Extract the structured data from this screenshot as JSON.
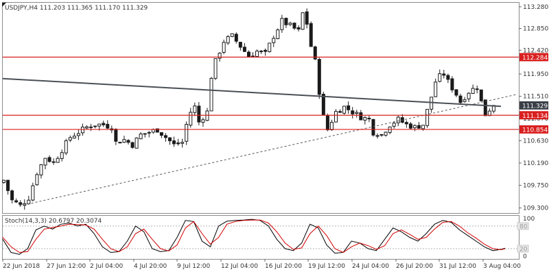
{
  "chart_data": [
    {
      "type": "candlestick",
      "title": "USDJPY,H4  111.203 111.365 111.170 111.329",
      "symbol": "USDJPY",
      "timeframe": "H4",
      "ohlc": {
        "open": 111.203,
        "high": 111.365,
        "low": 111.17,
        "close": 111.329
      },
      "ylim": [
        109.2,
        113.36
      ],
      "price_ticks": [
        "113.280",
        "112.850",
        "112.420",
        "111.950",
        "111.510",
        "111.070",
        "110.630",
        "110.190",
        "109.750",
        "109.300"
      ],
      "x_ticks": [
        "22 Jun 2018",
        "27 Jun 12:00",
        "2 Jul 04:00",
        "4 Jul 20:00",
        "9 Jul 12:00",
        "12 Jul 04:00",
        "16 Jul 20:00",
        "19 Jul 12:00",
        "24 Jul 04:00",
        "26 Jul 20:00",
        "31 Jul 12:00",
        "3 Aug 04:00"
      ],
      "horizontal_levels": [
        {
          "value": 112.284,
          "label": "112.284",
          "color": "#d91f1f"
        },
        {
          "value": 111.134,
          "label": "111.134",
          "color": "#d91f1f"
        },
        {
          "value": 110.854,
          "label": "110.854",
          "color": "#d91f1f"
        }
      ],
      "current_price": {
        "value": 111.329,
        "label": "111.329",
        "color": "#3a3f47"
      },
      "trendlines": [
        {
          "style": "solid",
          "color": "#4a4f55",
          "from": {
            "bar": 0,
            "price": 111.86
          },
          "to": {
            "bar": 120,
            "price": 111.31
          }
        },
        {
          "style": "dashed",
          "color": "#555555",
          "from": {
            "bar": 4,
            "price": 109.34
          },
          "to": {
            "bar": 124,
            "price": 111.55
          }
        }
      ],
      "series": [
        {
          "close_path": [
            {
              "bar": 0,
              "price": 109.85
            },
            {
              "bar": 2,
              "price": 109.45
            },
            {
              "bar": 4,
              "price": 109.35
            },
            {
              "bar": 6,
              "price": 109.5
            },
            {
              "bar": 8,
              "price": 110.0
            },
            {
              "bar": 10,
              "price": 110.3
            },
            {
              "bar": 12,
              "price": 110.2
            },
            {
              "bar": 14,
              "price": 110.45
            },
            {
              "bar": 16,
              "price": 110.7
            },
            {
              "bar": 18,
              "price": 110.8
            },
            {
              "bar": 20,
              "price": 110.9
            },
            {
              "bar": 22,
              "price": 110.95
            },
            {
              "bar": 24,
              "price": 110.95
            },
            {
              "bar": 26,
              "price": 110.9
            },
            {
              "bar": 27,
              "price": 110.6
            },
            {
              "bar": 29,
              "price": 110.65
            },
            {
              "bar": 31,
              "price": 110.55
            },
            {
              "bar": 33,
              "price": 110.75
            },
            {
              "bar": 35,
              "price": 110.8
            },
            {
              "bar": 37,
              "price": 110.85
            },
            {
              "bar": 39,
              "price": 110.7
            },
            {
              "bar": 41,
              "price": 110.55
            },
            {
              "bar": 43,
              "price": 110.6
            },
            {
              "bar": 44,
              "price": 110.95
            },
            {
              "bar": 45,
              "price": 111.2
            },
            {
              "bar": 46,
              "price": 111.3
            },
            {
              "bar": 47,
              "price": 111.0
            },
            {
              "bar": 49,
              "price": 111.2
            },
            {
              "bar": 50,
              "price": 111.9
            },
            {
              "bar": 51,
              "price": 112.2
            },
            {
              "bar": 53,
              "price": 112.6
            },
            {
              "bar": 55,
              "price": 112.7
            },
            {
              "bar": 57,
              "price": 112.5
            },
            {
              "bar": 59,
              "price": 112.3
            },
            {
              "bar": 61,
              "price": 112.4
            },
            {
              "bar": 63,
              "price": 112.35
            },
            {
              "bar": 65,
              "price": 112.7
            },
            {
              "bar": 67,
              "price": 113.0
            },
            {
              "bar": 69,
              "price": 112.9
            },
            {
              "bar": 71,
              "price": 112.8
            },
            {
              "bar": 72,
              "price": 113.15
            },
            {
              "bar": 73,
              "price": 112.95
            },
            {
              "bar": 74,
              "price": 112.5
            },
            {
              "bar": 75,
              "price": 112.2
            },
            {
              "bar": 76,
              "price": 111.6
            },
            {
              "bar": 77,
              "price": 111.1
            },
            {
              "bar": 78,
              "price": 110.85
            },
            {
              "bar": 80,
              "price": 111.2
            },
            {
              "bar": 82,
              "price": 111.3
            },
            {
              "bar": 84,
              "price": 111.2
            },
            {
              "bar": 86,
              "price": 111.1
            },
            {
              "bar": 88,
              "price": 111.05
            },
            {
              "bar": 89,
              "price": 110.8
            },
            {
              "bar": 91,
              "price": 110.75
            },
            {
              "bar": 93,
              "price": 110.95
            },
            {
              "bar": 95,
              "price": 111.05
            },
            {
              "bar": 97,
              "price": 110.95
            },
            {
              "bar": 99,
              "price": 110.9
            },
            {
              "bar": 101,
              "price": 110.95
            },
            {
              "bar": 103,
              "price": 111.5
            },
            {
              "bar": 104,
              "price": 111.8
            },
            {
              "bar": 105,
              "price": 111.9
            },
            {
              "bar": 106,
              "price": 111.95
            },
            {
              "bar": 107,
              "price": 111.8
            },
            {
              "bar": 109,
              "price": 111.55
            },
            {
              "bar": 110,
              "price": 111.4
            },
            {
              "bar": 112,
              "price": 111.6
            },
            {
              "bar": 114,
              "price": 111.7
            },
            {
              "bar": 115,
              "price": 111.4
            },
            {
              "bar": 116,
              "price": 111.15
            },
            {
              "bar": 117,
              "price": 111.25
            },
            {
              "bar": 118,
              "price": 111.33
            }
          ]
        }
      ]
    },
    {
      "type": "line",
      "title": "Stoch(14,3,3) 20.6797 20.3074",
      "ylim": [
        0,
        100
      ],
      "y_ticks": [
        "100",
        "0"
      ],
      "levels": [
        {
          "value": 80,
          "label": "80"
        },
        {
          "value": 20,
          "label": "20"
        }
      ],
      "series": [
        {
          "name": "%K",
          "color": "#000000",
          "points": [
            {
              "bar": 0,
              "value": 45
            },
            {
              "bar": 2,
              "value": 10
            },
            {
              "bar": 4,
              "value": 5
            },
            {
              "bar": 6,
              "value": 20
            },
            {
              "bar": 8,
              "value": 70
            },
            {
              "bar": 10,
              "value": 80
            },
            {
              "bar": 12,
              "value": 72
            },
            {
              "bar": 14,
              "value": 85
            },
            {
              "bar": 16,
              "value": 88
            },
            {
              "bar": 18,
              "value": 80
            },
            {
              "bar": 20,
              "value": 85
            },
            {
              "bar": 22,
              "value": 60
            },
            {
              "bar": 24,
              "value": 25
            },
            {
              "bar": 26,
              "value": 10
            },
            {
              "bar": 28,
              "value": 12
            },
            {
              "bar": 30,
              "value": 40
            },
            {
              "bar": 32,
              "value": 80
            },
            {
              "bar": 34,
              "value": 65
            },
            {
              "bar": 36,
              "value": 20
            },
            {
              "bar": 38,
              "value": 12
            },
            {
              "bar": 40,
              "value": 15
            },
            {
              "bar": 42,
              "value": 50
            },
            {
              "bar": 44,
              "value": 95
            },
            {
              "bar": 46,
              "value": 92
            },
            {
              "bar": 48,
              "value": 40
            },
            {
              "bar": 50,
              "value": 25
            },
            {
              "bar": 52,
              "value": 80
            },
            {
              "bar": 54,
              "value": 93
            },
            {
              "bar": 56,
              "value": 95
            },
            {
              "bar": 58,
              "value": 96
            },
            {
              "bar": 60,
              "value": 98
            },
            {
              "bar": 62,
              "value": 95
            },
            {
              "bar": 64,
              "value": 80
            },
            {
              "bar": 66,
              "value": 45
            },
            {
              "bar": 68,
              "value": 20
            },
            {
              "bar": 70,
              "value": 15
            },
            {
              "bar": 72,
              "value": 35
            },
            {
              "bar": 74,
              "value": 85
            },
            {
              "bar": 76,
              "value": 75
            },
            {
              "bar": 78,
              "value": 30
            },
            {
              "bar": 80,
              "value": 8
            },
            {
              "bar": 82,
              "value": 10
            },
            {
              "bar": 84,
              "value": 40
            },
            {
              "bar": 86,
              "value": 35
            },
            {
              "bar": 88,
              "value": 20
            },
            {
              "bar": 90,
              "value": 15
            },
            {
              "bar": 92,
              "value": 45
            },
            {
              "bar": 94,
              "value": 75
            },
            {
              "bar": 96,
              "value": 65
            },
            {
              "bar": 98,
              "value": 50
            },
            {
              "bar": 100,
              "value": 40
            },
            {
              "bar": 102,
              "value": 60
            },
            {
              "bar": 104,
              "value": 85
            },
            {
              "bar": 106,
              "value": 95
            },
            {
              "bar": 108,
              "value": 90
            },
            {
              "bar": 110,
              "value": 70
            },
            {
              "bar": 112,
              "value": 55
            },
            {
              "bar": 114,
              "value": 40
            },
            {
              "bar": 116,
              "value": 25
            },
            {
              "bar": 118,
              "value": 15
            },
            {
              "bar": 120,
              "value": 18
            },
            {
              "bar": 121,
              "value": 21
            }
          ]
        },
        {
          "name": "%D",
          "color": "#d40000",
          "points": [
            {
              "bar": 0,
              "value": 50
            },
            {
              "bar": 2,
              "value": 25
            },
            {
              "bar": 4,
              "value": 10
            },
            {
              "bar": 6,
              "value": 12
            },
            {
              "bar": 8,
              "value": 45
            },
            {
              "bar": 10,
              "value": 72
            },
            {
              "bar": 12,
              "value": 76
            },
            {
              "bar": 14,
              "value": 80
            },
            {
              "bar": 16,
              "value": 85
            },
            {
              "bar": 18,
              "value": 84
            },
            {
              "bar": 20,
              "value": 83
            },
            {
              "bar": 22,
              "value": 72
            },
            {
              "bar": 24,
              "value": 45
            },
            {
              "bar": 26,
              "value": 20
            },
            {
              "bar": 28,
              "value": 12
            },
            {
              "bar": 30,
              "value": 25
            },
            {
              "bar": 32,
              "value": 60
            },
            {
              "bar": 34,
              "value": 72
            },
            {
              "bar": 36,
              "value": 45
            },
            {
              "bar": 38,
              "value": 20
            },
            {
              "bar": 40,
              "value": 14
            },
            {
              "bar": 42,
              "value": 30
            },
            {
              "bar": 44,
              "value": 75
            },
            {
              "bar": 46,
              "value": 92
            },
            {
              "bar": 48,
              "value": 60
            },
            {
              "bar": 50,
              "value": 32
            },
            {
              "bar": 52,
              "value": 50
            },
            {
              "bar": 54,
              "value": 85
            },
            {
              "bar": 56,
              "value": 92
            },
            {
              "bar": 58,
              "value": 95
            },
            {
              "bar": 60,
              "value": 96
            },
            {
              "bar": 62,
              "value": 96
            },
            {
              "bar": 64,
              "value": 88
            },
            {
              "bar": 66,
              "value": 65
            },
            {
              "bar": 68,
              "value": 35
            },
            {
              "bar": 70,
              "value": 18
            },
            {
              "bar": 72,
              "value": 22
            },
            {
              "bar": 74,
              "value": 60
            },
            {
              "bar": 76,
              "value": 80
            },
            {
              "bar": 78,
              "value": 55
            },
            {
              "bar": 80,
              "value": 20
            },
            {
              "bar": 82,
              "value": 10
            },
            {
              "bar": 84,
              "value": 25
            },
            {
              "bar": 86,
              "value": 35
            },
            {
              "bar": 88,
              "value": 28
            },
            {
              "bar": 90,
              "value": 18
            },
            {
              "bar": 92,
              "value": 28
            },
            {
              "bar": 94,
              "value": 60
            },
            {
              "bar": 96,
              "value": 70
            },
            {
              "bar": 98,
              "value": 58
            },
            {
              "bar": 100,
              "value": 45
            },
            {
              "bar": 102,
              "value": 50
            },
            {
              "bar": 104,
              "value": 72
            },
            {
              "bar": 106,
              "value": 90
            },
            {
              "bar": 108,
              "value": 92
            },
            {
              "bar": 110,
              "value": 80
            },
            {
              "bar": 112,
              "value": 62
            },
            {
              "bar": 114,
              "value": 48
            },
            {
              "bar": 116,
              "value": 32
            },
            {
              "bar": 118,
              "value": 20
            },
            {
              "bar": 120,
              "value": 17
            },
            {
              "bar": 121,
              "value": 20
            }
          ]
        }
      ]
    }
  ]
}
